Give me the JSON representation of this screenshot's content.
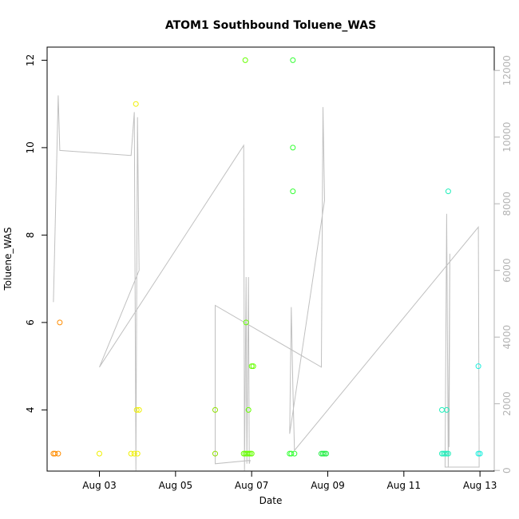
{
  "chart_data": {
    "type": "scatter",
    "title": "ATOM1 Southbound Toluene_WAS",
    "xlabel": "Date",
    "ylabel": "Toluene_WAS",
    "x_ticks": [
      "Aug 03",
      "Aug 05",
      "Aug 07",
      "Aug 09",
      "Aug 11",
      "Aug 13"
    ],
    "xlim": [
      "2016-08-01T15:00",
      "2016-08-13T09:00"
    ],
    "ylim": [
      2.6,
      12.3
    ],
    "y_ticks": [
      4,
      6,
      8,
      10,
      12
    ],
    "y2lim": [
      -20,
      12700
    ],
    "y2_ticks": [
      0,
      2000,
      4000,
      6000,
      8000,
      10000,
      12000
    ],
    "grid": false,
    "points": [
      {
        "x": "2016-08-01T19:00",
        "y": 3,
        "color": "#ff8c00"
      },
      {
        "x": "2016-08-01T20:00",
        "y": 3,
        "color": "#ff8c00"
      },
      {
        "x": "2016-08-01T22:00",
        "y": 3,
        "color": "#ff8c00"
      },
      {
        "x": "2016-08-01T23:00",
        "y": 6,
        "color": "#ff8c00"
      },
      {
        "x": "2016-08-03T00:00",
        "y": 3,
        "color": "#f0f000"
      },
      {
        "x": "2016-08-03T20:00",
        "y": 3,
        "color": "#f0f000"
      },
      {
        "x": "2016-08-03T22:00",
        "y": 3,
        "color": "#f0f000"
      },
      {
        "x": "2016-08-03T23:00",
        "y": 11,
        "color": "#f0f000"
      },
      {
        "x": "2016-08-03T23:30",
        "y": 4,
        "color": "#f0f000"
      },
      {
        "x": "2016-08-04T00:00",
        "y": 3,
        "color": "#f0f000"
      },
      {
        "x": "2016-08-04T01:00",
        "y": 4,
        "color": "#f0f000"
      },
      {
        "x": "2016-08-06T01:00",
        "y": 4,
        "color": "#8fe000"
      },
      {
        "x": "2016-08-06T01:00",
        "y": 3,
        "color": "#8fe000"
      },
      {
        "x": "2016-08-06T19:00",
        "y": 3,
        "color": "#66ff00"
      },
      {
        "x": "2016-08-06T20:00",
        "y": 12,
        "color": "#66ff00"
      },
      {
        "x": "2016-08-06T20:00",
        "y": 3,
        "color": "#66ff00"
      },
      {
        "x": "2016-08-06T20:30",
        "y": 6,
        "color": "#66ff00"
      },
      {
        "x": "2016-08-06T21:00",
        "y": 3,
        "color": "#66ff00"
      },
      {
        "x": "2016-08-06T22:00",
        "y": 4,
        "color": "#66ff00"
      },
      {
        "x": "2016-08-06T22:00",
        "y": 3,
        "color": "#66ff00"
      },
      {
        "x": "2016-08-06T23:00",
        "y": 3,
        "color": "#66ff00"
      },
      {
        "x": "2016-08-07T00:00",
        "y": 5,
        "color": "#66ff00"
      },
      {
        "x": "2016-08-07T00:00",
        "y": 3,
        "color": "#66ff00"
      },
      {
        "x": "2016-08-07T01:00",
        "y": 5,
        "color": "#66ff00"
      },
      {
        "x": "2016-08-08T00:00",
        "y": 3,
        "color": "#33ff33"
      },
      {
        "x": "2016-08-08T01:00",
        "y": 3,
        "color": "#33ff33"
      },
      {
        "x": "2016-08-08T02:00",
        "y": 12,
        "color": "#33ff33"
      },
      {
        "x": "2016-08-08T02:00",
        "y": 10,
        "color": "#33ff33"
      },
      {
        "x": "2016-08-08T02:00",
        "y": 9,
        "color": "#33ff33"
      },
      {
        "x": "2016-08-08T03:00",
        "y": 3,
        "color": "#33ff33"
      },
      {
        "x": "2016-08-08T20:00",
        "y": 3,
        "color": "#22ee44"
      },
      {
        "x": "2016-08-08T21:00",
        "y": 3,
        "color": "#22ee44"
      },
      {
        "x": "2016-08-08T22:00",
        "y": 3,
        "color": "#22ee44"
      },
      {
        "x": "2016-08-08T23:00",
        "y": 3,
        "color": "#22ee44"
      },
      {
        "x": "2016-08-12T00:00",
        "y": 4,
        "color": "#22eebb"
      },
      {
        "x": "2016-08-12T00:00",
        "y": 3,
        "color": "#22eebb"
      },
      {
        "x": "2016-08-12T01:00",
        "y": 3,
        "color": "#22eebb"
      },
      {
        "x": "2016-08-12T02:00",
        "y": 3,
        "color": "#22eebb"
      },
      {
        "x": "2016-08-12T03:00",
        "y": 4,
        "color": "#22eebb"
      },
      {
        "x": "2016-08-12T03:00",
        "y": 3,
        "color": "#22eebb"
      },
      {
        "x": "2016-08-12T04:00",
        "y": 9,
        "color": "#22eebb"
      },
      {
        "x": "2016-08-12T04:00",
        "y": 3,
        "color": "#22eebb"
      },
      {
        "x": "2016-08-12T23:00",
        "y": 5,
        "color": "#22eedd"
      },
      {
        "x": "2016-08-12T23:00",
        "y": 3,
        "color": "#22eedd"
      },
      {
        "x": "2016-08-13T00:00",
        "y": 3,
        "color": "#22eedd"
      }
    ],
    "line_color": "#c0c0c0",
    "line_series": [
      {
        "x": "2016-08-01T19:00",
        "y": 5050
      },
      {
        "x": "2016-08-01T22:00",
        "y": 11250
      },
      {
        "x": "2016-08-01T23:00",
        "y": 9600
      },
      {
        "x": "2016-08-03T20:00",
        "y": 9450
      },
      {
        "x": "2016-08-03T22:00",
        "y": 10750
      },
      {
        "x": "2016-08-03T23:00",
        "y": 0
      },
      {
        "x": "2016-08-04T00:00",
        "y": 10600
      },
      {
        "x": "2016-08-04T01:00",
        "y": 6000
      },
      {
        "x": "2016-08-03T00:00",
        "y": 3100
      },
      {
        "x": "2016-08-06T19:00",
        "y": 9750
      },
      {
        "x": "2016-08-06T19:30",
        "y": 0
      },
      {
        "x": "2016-08-06T20:30",
        "y": 5800
      },
      {
        "x": "2016-08-06T21:00",
        "y": 200
      },
      {
        "x": "2016-08-06T22:00",
        "y": 5800
      },
      {
        "x": "2016-08-06T22:30",
        "y": 200
      },
      {
        "x": "2016-08-06T23:00",
        "y": 300
      },
      {
        "x": "2016-08-06T01:00",
        "y": 200
      },
      {
        "x": "2016-08-06T01:00",
        "y": 4950
      },
      {
        "x": "2016-08-08T20:00",
        "y": 3100
      },
      {
        "x": "2016-08-08T21:00",
        "y": 10900
      },
      {
        "x": "2016-08-08T22:00",
        "y": 8100
      },
      {
        "x": "2016-08-08T00:00",
        "y": 1100
      },
      {
        "x": "2016-08-08T01:00",
        "y": 4900
      },
      {
        "x": "2016-08-08T02:00",
        "y": 2500
      },
      {
        "x": "2016-08-08T03:00",
        "y": 600
      },
      {
        "x": "2016-08-12T23:00",
        "y": 7300
      },
      {
        "x": "2016-08-12T23:30",
        "y": 100
      },
      {
        "x": "2016-08-12T03:00",
        "y": 100
      },
      {
        "x": "2016-08-12T02:00",
        "y": 100
      },
      {
        "x": "2016-08-12T03:00",
        "y": 7700
      },
      {
        "x": "2016-08-12T04:00",
        "y": 100
      },
      {
        "x": "2016-08-12T05:00",
        "y": 6500
      },
      {
        "x": "2016-08-12T04:30",
        "y": 700
      }
    ]
  }
}
